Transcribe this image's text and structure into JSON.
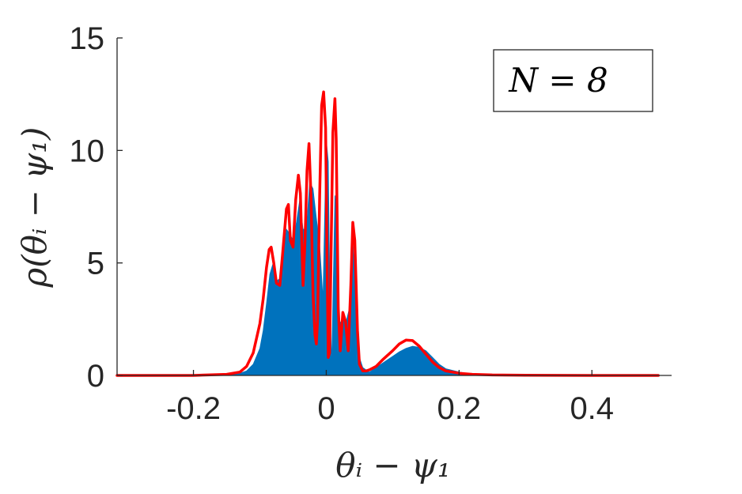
{
  "chart_data": {
    "type": "area",
    "title": "",
    "xlabel": "θᵢ − ψ₁",
    "ylabel": "ρ(θᵢ − ψ₁)",
    "xlim": [
      -0.315,
      0.52
    ],
    "ylim": [
      0,
      15
    ],
    "xticks": [
      -0.2,
      0,
      0.2,
      0.4
    ],
    "xtick_labels": [
      "-0.2",
      "0",
      "0.2",
      "0.4"
    ],
    "yticks": [
      0,
      5,
      10,
      15
    ],
    "ytick_labels": [
      "0",
      "5",
      "10",
      "15"
    ],
    "grid": false,
    "legend_placement": "top-right",
    "annotation": "N = 8",
    "colors": {
      "histogram": "#0072BD",
      "curve": "#FF0000",
      "axis": "#262626"
    },
    "series": [
      {
        "kind": "histogram-fill",
        "x": [
          -0.315,
          -0.2,
          -0.15,
          -0.13,
          -0.12,
          -0.11,
          -0.1,
          -0.095,
          -0.09,
          -0.085,
          -0.08,
          -0.075,
          -0.07,
          -0.065,
          -0.06,
          -0.055,
          -0.05,
          -0.045,
          -0.04,
          -0.035,
          -0.03,
          -0.025,
          -0.02,
          -0.015,
          -0.01,
          -0.005,
          0.0,
          0.003,
          0.005,
          0.008,
          0.01,
          0.013,
          0.015,
          0.018,
          0.02,
          0.025,
          0.03,
          0.035,
          0.04,
          0.045,
          0.05,
          0.055,
          0.06,
          0.065,
          0.07,
          0.08,
          0.09,
          0.1,
          0.11,
          0.12,
          0.13,
          0.14,
          0.15,
          0.16,
          0.17,
          0.18,
          0.2,
          0.22,
          0.25,
          0.3,
          0.4,
          0.52
        ],
        "y": [
          0,
          0,
          0.02,
          0.1,
          0.2,
          0.5,
          1.2,
          2.0,
          3.2,
          4.5,
          5.0,
          4.2,
          4.3,
          5.3,
          6.5,
          6.3,
          6.0,
          6.8,
          7.8,
          6.5,
          6.5,
          8.6,
          8.3,
          7.0,
          5.8,
          3.4,
          10.5,
          9.5,
          4.5,
          0.5,
          3.2,
          8.0,
          7.6,
          3.0,
          2.3,
          2.5,
          2.4,
          3.0,
          6.0,
          3.5,
          0.8,
          0.35,
          0.25,
          0.15,
          0.25,
          0.45,
          0.65,
          0.85,
          1.05,
          1.2,
          1.3,
          1.25,
          1.1,
          0.8,
          0.5,
          0.3,
          0.15,
          0.05,
          0.02,
          0.01,
          0,
          0
        ]
      },
      {
        "kind": "curve",
        "x": [
          -0.315,
          -0.2,
          -0.15,
          -0.13,
          -0.12,
          -0.11,
          -0.1,
          -0.095,
          -0.09,
          -0.086,
          -0.083,
          -0.079,
          -0.075,
          -0.07,
          -0.066,
          -0.06,
          -0.057,
          -0.054,
          -0.05,
          -0.046,
          -0.042,
          -0.039,
          -0.035,
          -0.032,
          -0.029,
          -0.026,
          -0.023,
          -0.02,
          -0.017,
          -0.015,
          -0.013,
          -0.01,
          -0.007,
          -0.004,
          -0.001,
          0.001,
          0.003,
          0.005,
          0.007,
          0.01,
          0.013,
          0.015,
          0.018,
          0.021,
          0.025,
          0.029,
          0.033,
          0.037,
          0.04,
          0.043,
          0.047,
          0.05,
          0.055,
          0.06,
          0.065,
          0.075,
          0.085,
          0.1,
          0.11,
          0.12,
          0.13,
          0.14,
          0.15,
          0.16,
          0.17,
          0.18,
          0.2,
          0.22,
          0.25,
          0.3,
          0.4,
          0.5
        ],
        "y": [
          0,
          0,
          0.05,
          0.15,
          0.4,
          1.0,
          2.3,
          3.4,
          4.8,
          5.6,
          5.7,
          5.0,
          4.1,
          4.0,
          5.3,
          7.4,
          7.6,
          6.0,
          5.7,
          7.8,
          8.9,
          8.1,
          4.0,
          6.0,
          9.1,
          10.3,
          8.0,
          3.6,
          1.8,
          1.4,
          2.5,
          8.0,
          12.0,
          12.6,
          11.0,
          5.5,
          0.8,
          1.0,
          5.0,
          10.8,
          12.3,
          10.5,
          3.0,
          1.1,
          2.8,
          2.4,
          1.1,
          4.0,
          6.8,
          6.0,
          2.0,
          0.5,
          0.2,
          0.2,
          0.25,
          0.4,
          0.7,
          1.1,
          1.4,
          1.57,
          1.55,
          1.3,
          0.95,
          0.6,
          0.35,
          0.2,
          0.1,
          0.05,
          0.02,
          0.01,
          0,
          0
        ]
      }
    ]
  }
}
